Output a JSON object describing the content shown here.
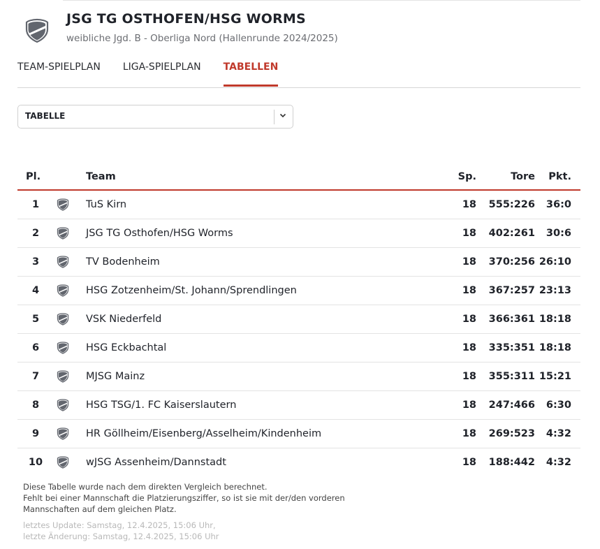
{
  "header": {
    "title": "JSG TG OSTHOFEN/HSG WORMS",
    "subtitle": "weibliche Jgd. B - Oberliga Nord (Hallenrunde 2024/2025)",
    "logo_icon": "shield-icon"
  },
  "tabs": [
    {
      "label": "TEAM-SPIELPLAN",
      "active": false
    },
    {
      "label": "LIGA-SPIELPLAN",
      "active": false
    },
    {
      "label": "TABELLEN",
      "active": true
    }
  ],
  "accent_color": "#c0392b",
  "select": {
    "value": "TABELLE"
  },
  "table": {
    "headers": {
      "pl": "Pl.",
      "team": "Team",
      "sp": "Sp.",
      "tore": "Tore",
      "pkt": "Pkt."
    },
    "rows": [
      {
        "pl": "1",
        "team": "TuS Kirn",
        "sp": "18",
        "tore": "555:226",
        "pkt": "36:0"
      },
      {
        "pl": "2",
        "team": "JSG TG Osthofen/HSG Worms",
        "sp": "18",
        "tore": "402:261",
        "pkt": "30:6"
      },
      {
        "pl": "3",
        "team": "TV Bodenheim",
        "sp": "18",
        "tore": "370:256",
        "pkt": "26:10"
      },
      {
        "pl": "4",
        "team": "HSG Zotzenheim/St. Johann/Sprendlingen",
        "sp": "18",
        "tore": "367:257",
        "pkt": "23:13"
      },
      {
        "pl": "5",
        "team": "VSK Niederfeld",
        "sp": "18",
        "tore": "366:361",
        "pkt": "18:18"
      },
      {
        "pl": "6",
        "team": "HSG Eckbachtal",
        "sp": "18",
        "tore": "335:351",
        "pkt": "18:18"
      },
      {
        "pl": "7",
        "team": "MJSG Mainz",
        "sp": "18",
        "tore": "355:311",
        "pkt": "15:21"
      },
      {
        "pl": "8",
        "team": "HSG TSG/1. FC Kaiserslautern",
        "sp": "18",
        "tore": "247:466",
        "pkt": "6:30"
      },
      {
        "pl": "9",
        "team": "HR Göllheim/Eisenberg/Asselheim/Kindenheim",
        "sp": "18",
        "tore": "269:523",
        "pkt": "4:32"
      },
      {
        "pl": "10",
        "team": "wJSG Assenheim/Dannstadt",
        "sp": "18",
        "tore": "188:442",
        "pkt": "4:32"
      }
    ]
  },
  "footer": {
    "note_lines": [
      "Diese Tabelle wurde nach dem direkten Vergleich berechnet.",
      "Fehlt bei einer Mannschaft die Platzierungsziffer, so ist sie mit der/den vorderen",
      "Mannschaften auf dem gleichen Platz."
    ],
    "update": "letztes Update: Samstag, 12.4.2025, 15:06 Uhr,",
    "changed": "letzte Änderung: Samstag, 12.4.2025, 15:06 Uhr"
  }
}
